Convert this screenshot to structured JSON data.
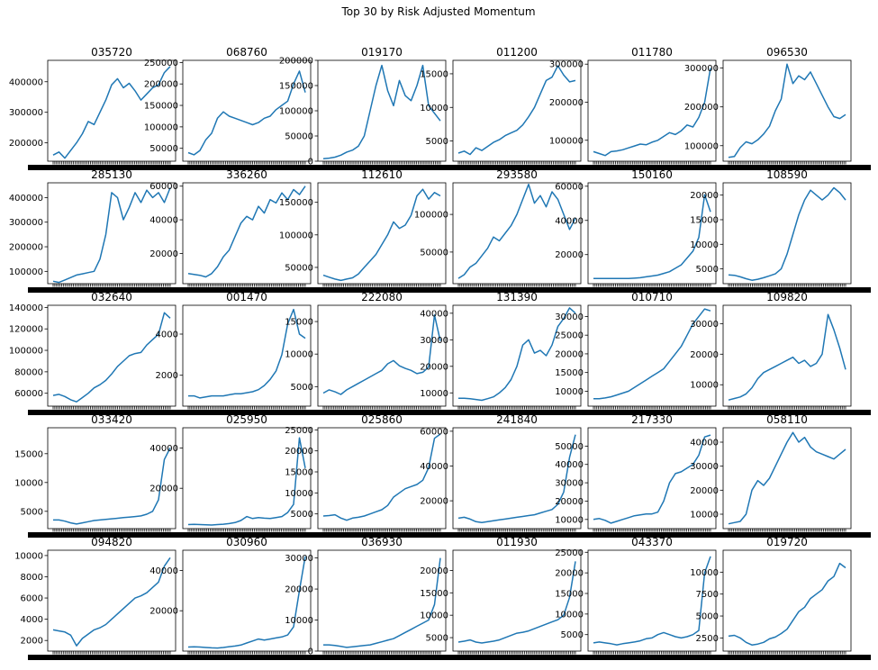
{
  "figure": {
    "title": "Top 30 by Risk Adjusted Momentum"
  },
  "style": {
    "line_color": "#1f77b4",
    "frame_color": "#000000",
    "background": "#ffffff"
  },
  "chart_data": [
    {
      "type": "line",
      "title": "035720",
      "ylim": [
        140000,
        470000
      ],
      "yticks": [
        200000,
        300000,
        400000
      ],
      "values": [
        160000,
        170000,
        150000,
        175000,
        200000,
        230000,
        270000,
        260000,
        300000,
        340000,
        390000,
        410000,
        380000,
        395000,
        370000,
        340000,
        360000,
        380000,
        390000,
        430000,
        450000
      ]
    },
    {
      "type": "line",
      "title": "068760",
      "ylim": [
        20000,
        255000
      ],
      "yticks": [
        50000,
        100000,
        150000,
        200000,
        250000
      ],
      "values": [
        40000,
        35000,
        45000,
        70000,
        85000,
        120000,
        135000,
        125000,
        120000,
        115000,
        110000,
        105000,
        110000,
        120000,
        125000,
        140000,
        150000,
        160000,
        200000,
        230000,
        180000
      ]
    },
    {
      "type": "line",
      "title": "019170",
      "ylim": [
        0,
        200000
      ],
      "yticks": [
        0,
        50000,
        100000,
        150000,
        200000
      ],
      "values": [
        5000,
        6000,
        8000,
        12000,
        18000,
        22000,
        30000,
        50000,
        100000,
        150000,
        190000,
        140000,
        110000,
        160000,
        130000,
        120000,
        150000,
        190000,
        110000,
        95000,
        80000
      ]
    },
    {
      "type": "line",
      "title": "011200",
      "ylim": [
        2000,
        17000
      ],
      "yticks": [
        5000,
        10000,
        15000
      ],
      "values": [
        3200,
        3500,
        3000,
        4000,
        3600,
        4200,
        4800,
        5200,
        5800,
        6200,
        6600,
        7400,
        8600,
        10000,
        12000,
        14000,
        14500,
        16200,
        14800,
        13800,
        14000
      ]
    },
    {
      "type": "line",
      "title": "011780",
      "ylim": [
        45000,
        310000
      ],
      "yticks": [
        100000,
        200000,
        300000
      ],
      "values": [
        70000,
        65000,
        60000,
        70000,
        72000,
        75000,
        80000,
        85000,
        90000,
        88000,
        95000,
        100000,
        110000,
        120000,
        115000,
        125000,
        140000,
        135000,
        160000,
        200000,
        290000
      ]
    },
    {
      "type": "line",
      "title": "096530",
      "ylim": [
        60000,
        320000
      ],
      "yticks": [
        100000,
        200000,
        300000
      ],
      "values": [
        70000,
        72000,
        95000,
        110000,
        105000,
        115000,
        130000,
        150000,
        190000,
        220000,
        310000,
        260000,
        280000,
        270000,
        290000,
        260000,
        230000,
        200000,
        175000,
        170000,
        180000
      ]
    },
    {
      "type": "line",
      "title": "285130",
      "ylim": [
        50000,
        460000
      ],
      "yticks": [
        100000,
        200000,
        300000,
        400000
      ],
      "values": [
        60000,
        55000,
        65000,
        75000,
        85000,
        90000,
        95000,
        100000,
        150000,
        250000,
        420000,
        400000,
        310000,
        360000,
        420000,
        380000,
        430000,
        400000,
        420000,
        380000,
        440000
      ]
    },
    {
      "type": "line",
      "title": "336260",
      "ylim": [
        2000,
        62000
      ],
      "yticks": [
        20000,
        40000,
        60000
      ],
      "values": [
        8000,
        7500,
        7000,
        6000,
        8000,
        12000,
        18000,
        22000,
        30000,
        38000,
        42000,
        40000,
        48000,
        44000,
        52000,
        50000,
        56000,
        52000,
        58000,
        55000,
        60000
      ]
    },
    {
      "type": "line",
      "title": "112610",
      "ylim": [
        25000,
        180000
      ],
      "yticks": [
        50000,
        100000,
        150000
      ],
      "values": [
        38000,
        35000,
        32000,
        30000,
        32000,
        34000,
        40000,
        50000,
        60000,
        70000,
        85000,
        100000,
        120000,
        110000,
        115000,
        130000,
        160000,
        170000,
        155000,
        165000,
        160000
      ]
    },
    {
      "type": "line",
      "title": "293580",
      "ylim": [
        8000,
        142000
      ],
      "yticks": [
        50000,
        100000
      ],
      "values": [
        15000,
        20000,
        30000,
        35000,
        45000,
        55000,
        70000,
        65000,
        75000,
        85000,
        100000,
        120000,
        140000,
        115000,
        125000,
        110000,
        130000,
        120000,
        100000,
        80000,
        95000
      ]
    },
    {
      "type": "line",
      "title": "150160",
      "ylim": [
        3000,
        62000
      ],
      "yticks": [
        20000,
        40000,
        60000
      ],
      "values": [
        6000,
        6000,
        6000,
        6000,
        6000,
        6000,
        6000,
        6200,
        6500,
        7000,
        7500,
        8000,
        9000,
        10000,
        12000,
        14000,
        18000,
        22000,
        30000,
        55000,
        45000
      ]
    },
    {
      "type": "line",
      "title": "108590",
      "ylim": [
        2000,
        22500
      ],
      "yticks": [
        5000,
        10000,
        15000,
        20000
      ],
      "values": [
        3800,
        3700,
        3400,
        3000,
        2700,
        2900,
        3200,
        3600,
        4000,
        5000,
        8000,
        12000,
        16000,
        19000,
        21000,
        20000,
        19000,
        20000,
        21500,
        20500,
        19000
      ]
    },
    {
      "type": "line",
      "title": "032640",
      "ylim": [
        48000,
        142000
      ],
      "yticks": [
        60000,
        80000,
        100000,
        120000,
        140000
      ],
      "values": [
        58000,
        59000,
        57000,
        54000,
        52000,
        56000,
        60000,
        65000,
        68000,
        72000,
        78000,
        85000,
        90000,
        95000,
        97000,
        98000,
        105000,
        110000,
        115000,
        135000,
        130000
      ]
    },
    {
      "type": "line",
      "title": "001470",
      "ylim": [
        500,
        5400
      ],
      "yticks": [
        2000,
        4000
      ],
      "values": [
        1000,
        1000,
        900,
        950,
        1000,
        1000,
        1000,
        1050,
        1100,
        1100,
        1150,
        1200,
        1300,
        1500,
        1800,
        2200,
        3000,
        4500,
        5200,
        4000,
        3800
      ]
    },
    {
      "type": "line",
      "title": "222080",
      "ylim": [
        2000,
        17500
      ],
      "yticks": [
        5000,
        10000,
        15000
      ],
      "values": [
        4000,
        4500,
        4200,
        3800,
        4500,
        5000,
        5500,
        6000,
        6500,
        7000,
        7500,
        8500,
        9000,
        8200,
        7800,
        7500,
        7000,
        7200,
        8000,
        16000,
        12000
      ]
    },
    {
      "type": "line",
      "title": "131390",
      "ylim": [
        5000,
        43000
      ],
      "yticks": [
        10000,
        20000,
        30000,
        40000
      ],
      "values": [
        8000,
        8000,
        7800,
        7500,
        7200,
        7800,
        8500,
        10000,
        12000,
        15000,
        20000,
        28000,
        30000,
        25000,
        26000,
        24000,
        28000,
        35000,
        38000,
        42000,
        40000
      ]
    },
    {
      "type": "line",
      "title": "010710",
      "ylim": [
        6000,
        33000
      ],
      "yticks": [
        10000,
        15000,
        20000,
        25000,
        30000
      ],
      "values": [
        8000,
        8000,
        8200,
        8500,
        9000,
        9500,
        10000,
        11000,
        12000,
        13000,
        14000,
        15000,
        16000,
        18000,
        20000,
        22000,
        25000,
        28000,
        30000,
        32000,
        31500
      ]
    },
    {
      "type": "line",
      "title": "109820",
      "ylim": [
        3000,
        36000
      ],
      "yticks": [
        10000,
        20000,
        30000
      ],
      "values": [
        5000,
        5500,
        6000,
        7000,
        9000,
        12000,
        14000,
        15000,
        16000,
        17000,
        18000,
        19000,
        17000,
        18000,
        16000,
        17000,
        20000,
        33000,
        28000,
        22000,
        15000
      ]
    },
    {
      "type": "line",
      "title": "033420",
      "ylim": [
        2000,
        19500
      ],
      "yticks": [
        5000,
        10000,
        15000
      ],
      "values": [
        3500,
        3500,
        3300,
        3000,
        2800,
        3000,
        3200,
        3400,
        3500,
        3600,
        3700,
        3800,
        3900,
        4000,
        4100,
        4200,
        4500,
        5000,
        7000,
        14000,
        16000
      ]
    },
    {
      "type": "line",
      "title": "025950",
      "ylim": [
        0,
        50000
      ],
      "yticks": [
        20000,
        40000
      ],
      "values": [
        2000,
        2100,
        2000,
        1900,
        1800,
        2000,
        2200,
        2500,
        3000,
        4000,
        6000,
        5000,
        5500,
        5200,
        5000,
        5500,
        6000,
        8000,
        12000,
        45000,
        30000
      ]
    },
    {
      "type": "line",
      "title": "025860",
      "ylim": [
        1500,
        25500
      ],
      "yticks": [
        5000,
        10000,
        15000,
        20000,
        25000
      ],
      "values": [
        4500,
        4600,
        4800,
        4000,
        3500,
        4000,
        4200,
        4500,
        5000,
        5500,
        6000,
        7000,
        9000,
        10000,
        11000,
        11500,
        12000,
        13000,
        16000,
        23000,
        24000
      ]
    },
    {
      "type": "line",
      "title": "241840",
      "ylim": [
        4000,
        62000
      ],
      "yticks": [
        20000,
        40000,
        60000
      ],
      "values": [
        10000,
        10500,
        9500,
        8000,
        7500,
        8000,
        8500,
        9000,
        9500,
        10000,
        10500,
        11000,
        11500,
        12000,
        13000,
        14000,
        15000,
        18000,
        25000,
        45000,
        58000
      ]
    },
    {
      "type": "line",
      "title": "217330",
      "ylim": [
        5000,
        60000
      ],
      "yticks": [
        10000,
        20000,
        30000,
        40000,
        50000
      ],
      "values": [
        10000,
        10500,
        9500,
        8000,
        9000,
        10000,
        11000,
        12000,
        12500,
        13000,
        13000,
        14000,
        20000,
        30000,
        35000,
        36000,
        38000,
        40000,
        45000,
        55000,
        56000
      ]
    },
    {
      "type": "line",
      "title": "058110",
      "ylim": [
        4000,
        46000
      ],
      "yticks": [
        10000,
        20000,
        30000,
        40000
      ],
      "values": [
        6000,
        6500,
        7000,
        10000,
        20000,
        24000,
        22000,
        25000,
        30000,
        35000,
        40000,
        44000,
        40000,
        42000,
        38000,
        36000,
        35000,
        34000,
        33000,
        35000,
        37000
      ]
    },
    {
      "type": "line",
      "title": "094820",
      "ylim": [
        1000,
        10500
      ],
      "yticks": [
        2000,
        4000,
        6000,
        8000,
        10000
      ],
      "values": [
        3000,
        2900,
        2800,
        2500,
        1500,
        2200,
        2600,
        3000,
        3200,
        3500,
        4000,
        4500,
        5000,
        5500,
        6000,
        6200,
        6500,
        7000,
        7500,
        9000,
        9800
      ]
    },
    {
      "type": "line",
      "title": "030960",
      "ylim": [
        0,
        50000
      ],
      "yticks": [
        20000,
        40000
      ],
      "values": [
        2000,
        2100,
        2000,
        1800,
        1600,
        1500,
        1800,
        2200,
        2500,
        3000,
        4000,
        5000,
        6000,
        5500,
        6000,
        6500,
        7000,
        8000,
        12000,
        30000,
        47000
      ]
    },
    {
      "type": "line",
      "title": "036930",
      "ylim": [
        0,
        32500
      ],
      "yticks": [
        0,
        10000,
        20000,
        30000
      ],
      "values": [
        2000,
        2000,
        1800,
        1500,
        1200,
        1400,
        1600,
        1800,
        2000,
        2500,
        3000,
        3500,
        4000,
        5000,
        6000,
        7000,
        8000,
        9000,
        10000,
        15000,
        30000
      ]
    },
    {
      "type": "line",
      "title": "011930",
      "ylim": [
        2000,
        24500
      ],
      "yticks": [
        5000,
        10000,
        15000,
        20000
      ],
      "values": [
        4000,
        4200,
        4500,
        4000,
        3800,
        4000,
        4200,
        4500,
        5000,
        5500,
        6000,
        6200,
        6500,
        7000,
        7500,
        8000,
        8500,
        9000,
        10000,
        14000,
        22000
      ]
    },
    {
      "type": "line",
      "title": "043370",
      "ylim": [
        1000,
        25500
      ],
      "yticks": [
        5000,
        10000,
        15000,
        20000,
        25000
      ],
      "values": [
        3000,
        3200,
        3000,
        2800,
        2500,
        2800,
        3000,
        3200,
        3500,
        4000,
        4200,
        5000,
        5500,
        5000,
        4500,
        4200,
        4500,
        5000,
        6000,
        20000,
        24000
      ]
    },
    {
      "type": "line",
      "title": "019720",
      "ylim": [
        1000,
        12500
      ],
      "yticks": [
        2500,
        5000,
        7500,
        10000
      ],
      "values": [
        2700,
        2800,
        2500,
        2000,
        1700,
        1800,
        2000,
        2400,
        2600,
        3000,
        3500,
        4500,
        5500,
        6000,
        7000,
        7500,
        8000,
        9000,
        9500,
        11000,
        10500
      ]
    }
  ]
}
